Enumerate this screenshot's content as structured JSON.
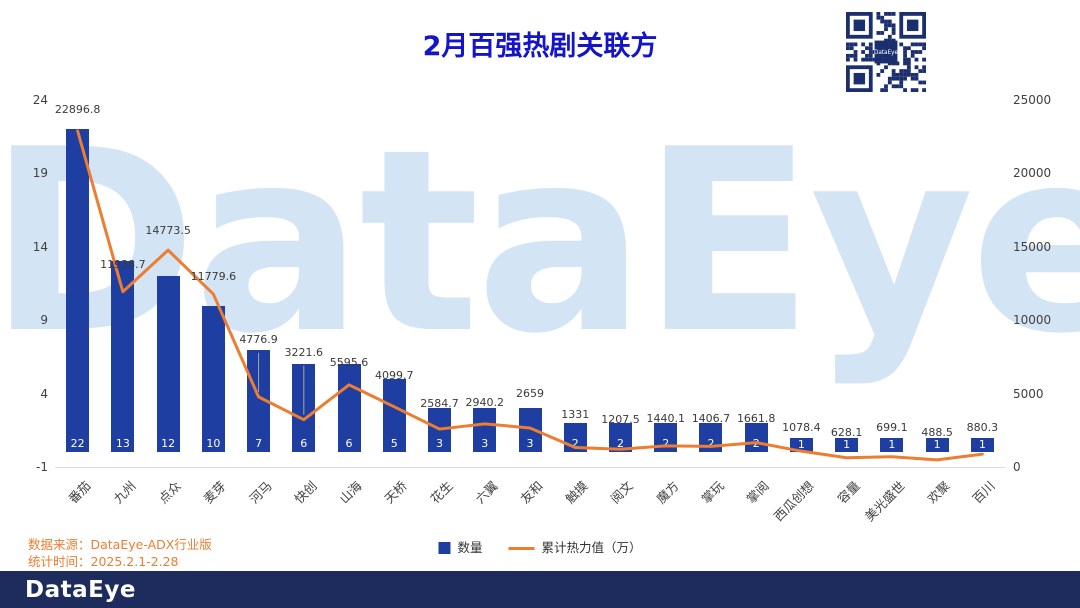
{
  "title": "2月百强热剧关联方",
  "watermark": "DataEye",
  "qr_label": "DataEye",
  "legend": {
    "bars": "数量",
    "line": "累计热力值（万）"
  },
  "source_line1": "数据来源：DataEye-ADX行业版",
  "source_line2": "统计时间：2025.2.1-2.28",
  "footer_logo": "DataEye",
  "colors": {
    "bar": "#1e3fa1",
    "line": "#ED7D31",
    "title": "#1414c8",
    "source": "#ED7D31",
    "footer_bg": "#1d2c5d",
    "watermark": "#d3e4f5",
    "qr": "#1b2f6e"
  },
  "chart_data": {
    "type": "bar",
    "subtype": "bar+line combo, dual axis",
    "title": "2月百强热剧关联方",
    "categories": [
      "番茄",
      "九州",
      "点众",
      "麦芽",
      "河马",
      "快创",
      "山海",
      "天桥",
      "花生",
      "六翼",
      "友和",
      "触摸",
      "阅文",
      "魔方",
      "掌玩",
      "掌阅",
      "西瓜创想",
      "容量",
      "美光盛世",
      "欢聚",
      "百川"
    ],
    "series": [
      {
        "name": "数量",
        "type": "bar",
        "axis": "left",
        "values": [
          22,
          13,
          12,
          10,
          7,
          6,
          6,
          5,
          3,
          3,
          3,
          2,
          2,
          2,
          2,
          2,
          1,
          1,
          1,
          1,
          1
        ]
      },
      {
        "name": "累计热力值（万）",
        "type": "line",
        "axis": "right",
        "values": [
          22896.8,
          11938.7,
          14773.5,
          11779.6,
          4776.9,
          3221.6,
          5595.6,
          4099.7,
          2584.7,
          2940.2,
          2659,
          1331,
          1207.5,
          1440.1,
          1406.7,
          1661.8,
          1078.4,
          628.1,
          699.1,
          488.5,
          880.3
        ]
      }
    ],
    "left_axis": {
      "min": -1,
      "max": 24,
      "ticks": [
        24,
        19,
        14,
        9,
        4,
        -1
      ]
    },
    "right_axis": {
      "min": 0,
      "max": 25000,
      "ticks": [
        25000,
        20000,
        15000,
        10000,
        5000,
        0
      ]
    },
    "grid": false,
    "legend_position": "bottom"
  }
}
